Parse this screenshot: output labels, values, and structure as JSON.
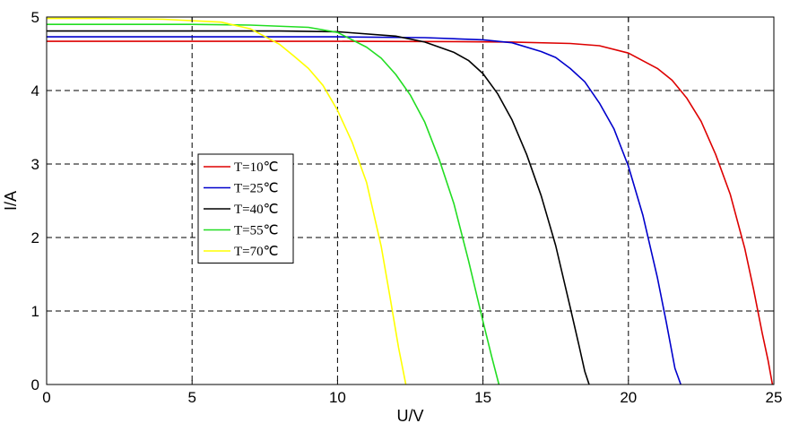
{
  "chart_data": {
    "type": "line",
    "xlabel": "U/V",
    "ylabel": "I/A",
    "xlim": [
      0,
      25
    ],
    "ylim": [
      0,
      5
    ],
    "xticks": [
      0,
      5,
      10,
      15,
      20,
      25
    ],
    "yticks": [
      0,
      1,
      2,
      3,
      4,
      5
    ],
    "grid": true,
    "legend_position": "center-left",
    "series": [
      {
        "name": "T=10℃",
        "color": "#dd0000",
        "x": [
          0,
          5,
          10,
          14,
          16,
          18,
          19,
          20,
          21,
          21.5,
          22,
          22.5,
          23,
          23.5,
          24,
          24.3,
          24.6,
          24.8,
          24.95
        ],
        "y": [
          4.67,
          4.67,
          4.67,
          4.666,
          4.66,
          4.64,
          4.61,
          4.51,
          4.3,
          4.14,
          3.9,
          3.58,
          3.13,
          2.59,
          1.85,
          1.3,
          0.7,
          0.33,
          0.0
        ]
      },
      {
        "name": "T=25℃",
        "color": "#0000cc",
        "x": [
          0,
          5,
          10,
          13,
          15,
          16,
          17,
          17.5,
          18,
          18.5,
          19,
          19.5,
          20,
          20.5,
          21,
          21.3,
          21.6,
          21.8
        ],
        "y": [
          4.73,
          4.73,
          4.73,
          4.72,
          4.69,
          4.65,
          4.53,
          4.45,
          4.3,
          4.12,
          3.83,
          3.48,
          2.97,
          2.3,
          1.45,
          0.85,
          0.22,
          0.0
        ]
      },
      {
        "name": "T=40℃",
        "color": "#000000",
        "x": [
          0,
          5,
          8,
          10,
          12,
          13,
          14,
          14.5,
          15,
          15.5,
          16,
          16.5,
          17,
          17.5,
          18,
          18.3,
          18.5,
          18.65
        ],
        "y": [
          4.81,
          4.81,
          4.81,
          4.8,
          4.74,
          4.66,
          4.52,
          4.41,
          4.23,
          3.96,
          3.6,
          3.13,
          2.57,
          1.89,
          1.05,
          0.53,
          0.18,
          0.0
        ]
      },
      {
        "name": "T=55℃",
        "color": "#22dd22",
        "x": [
          0,
          3,
          5,
          7,
          9,
          10,
          11,
          11.5,
          12,
          12.5,
          13,
          13.5,
          14,
          14.5,
          15,
          15.3,
          15.55
        ],
        "y": [
          4.9,
          4.9,
          4.9,
          4.89,
          4.86,
          4.79,
          4.59,
          4.44,
          4.22,
          3.94,
          3.57,
          3.06,
          2.46,
          1.69,
          0.86,
          0.38,
          0.0
        ]
      },
      {
        "name": "T=70℃",
        "color": "#ffff00",
        "x": [
          0,
          2,
          4,
          6,
          7,
          8,
          8.5,
          9,
          9.5,
          10,
          10.5,
          11,
          11.5,
          11.8,
          12.1,
          12.35
        ],
        "y": [
          4.98,
          4.98,
          4.97,
          4.93,
          4.84,
          4.63,
          4.47,
          4.3,
          4.07,
          3.73,
          3.3,
          2.75,
          1.88,
          1.2,
          0.5,
          0.0
        ]
      }
    ]
  }
}
